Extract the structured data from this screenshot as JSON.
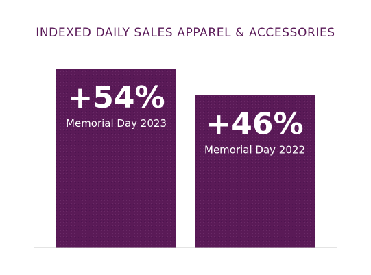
{
  "chart_data": {
    "type": "bar",
    "title": "INDEXED DAILY SALES APPAREL & ACCESSORIES",
    "categories": [
      "Memorial Day 2023",
      "Memorial Day 2022"
    ],
    "values": [
      54,
      46
    ],
    "data_labels": [
      "+54%",
      "+46%"
    ],
    "value_unit": "%",
    "xlabel": "",
    "ylabel": "",
    "ylim": [
      0,
      54
    ],
    "grid": false,
    "legend": "none",
    "colors": {
      "bar": "#5a1a57",
      "bar_texture": "#6a2a67",
      "title": "#5a1a58",
      "baseline": "#c8c8c8",
      "label_text": "#ffffff"
    }
  }
}
